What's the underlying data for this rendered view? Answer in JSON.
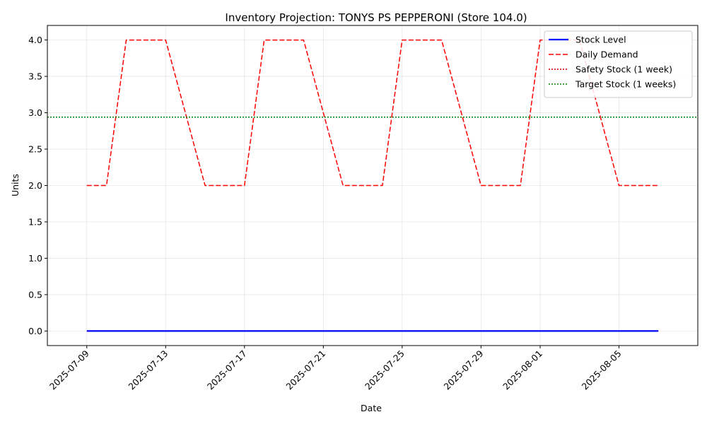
{
  "chart_data": {
    "type": "line",
    "title": "Inventory Projection: TONYS PS PEPPERONI (Store 104.0)",
    "xlabel": "Date",
    "ylabel": "Units",
    "x_start": "2025-07-09",
    "x_end": "2025-08-07",
    "xlim": [
      "2025-07-07",
      "2025-08-09"
    ],
    "ylim": [
      -0.2,
      4.2
    ],
    "yticks": [
      0.0,
      0.5,
      1.0,
      1.5,
      2.0,
      2.5,
      3.0,
      3.5,
      4.0
    ],
    "ytick_labels": [
      "0.0",
      "0.5",
      "1.0",
      "1.5",
      "2.0",
      "2.5",
      "3.0",
      "3.5",
      "4.0"
    ],
    "xticks": [
      "2025-07-09",
      "2025-07-13",
      "2025-07-17",
      "2025-07-21",
      "2025-07-25",
      "2025-07-29",
      "2025-08-01",
      "2025-08-05"
    ],
    "grid": true,
    "legend_position": "top-right",
    "series": [
      {
        "name": "Stock Level",
        "style": "solid",
        "color": "#0000ff",
        "x": [
          "2025-07-09",
          "2025-08-07"
        ],
        "values": [
          0,
          0
        ]
      },
      {
        "name": "Daily Demand",
        "style": "dashed",
        "color": "#ff0000",
        "x": [
          "2025-07-09",
          "2025-07-10",
          "2025-07-11",
          "2025-07-12",
          "2025-07-13",
          "2025-07-14",
          "2025-07-15",
          "2025-07-16",
          "2025-07-17",
          "2025-07-18",
          "2025-07-19",
          "2025-07-20",
          "2025-07-21",
          "2025-07-22",
          "2025-07-23",
          "2025-07-24",
          "2025-07-25",
          "2025-07-26",
          "2025-07-27",
          "2025-07-28",
          "2025-07-29",
          "2025-07-30",
          "2025-07-31",
          "2025-08-01",
          "2025-08-02",
          "2025-08-03",
          "2025-08-04",
          "2025-08-05",
          "2025-08-06",
          "2025-08-07"
        ],
        "values": [
          2,
          2,
          4,
          4,
          4,
          3,
          2,
          2,
          2,
          4,
          4,
          4,
          3,
          2,
          2,
          2,
          4,
          4,
          4,
          3,
          2,
          2,
          2,
          4,
          4,
          4,
          3,
          2,
          2,
          2
        ]
      },
      {
        "name": "Safety Stock (1 week)",
        "style": "dotted",
        "color": "#cc0000",
        "constant": 2.94
      },
      {
        "name": "Target Stock (1 weeks)",
        "style": "dotted",
        "color": "#008000",
        "constant": 2.94
      }
    ]
  }
}
